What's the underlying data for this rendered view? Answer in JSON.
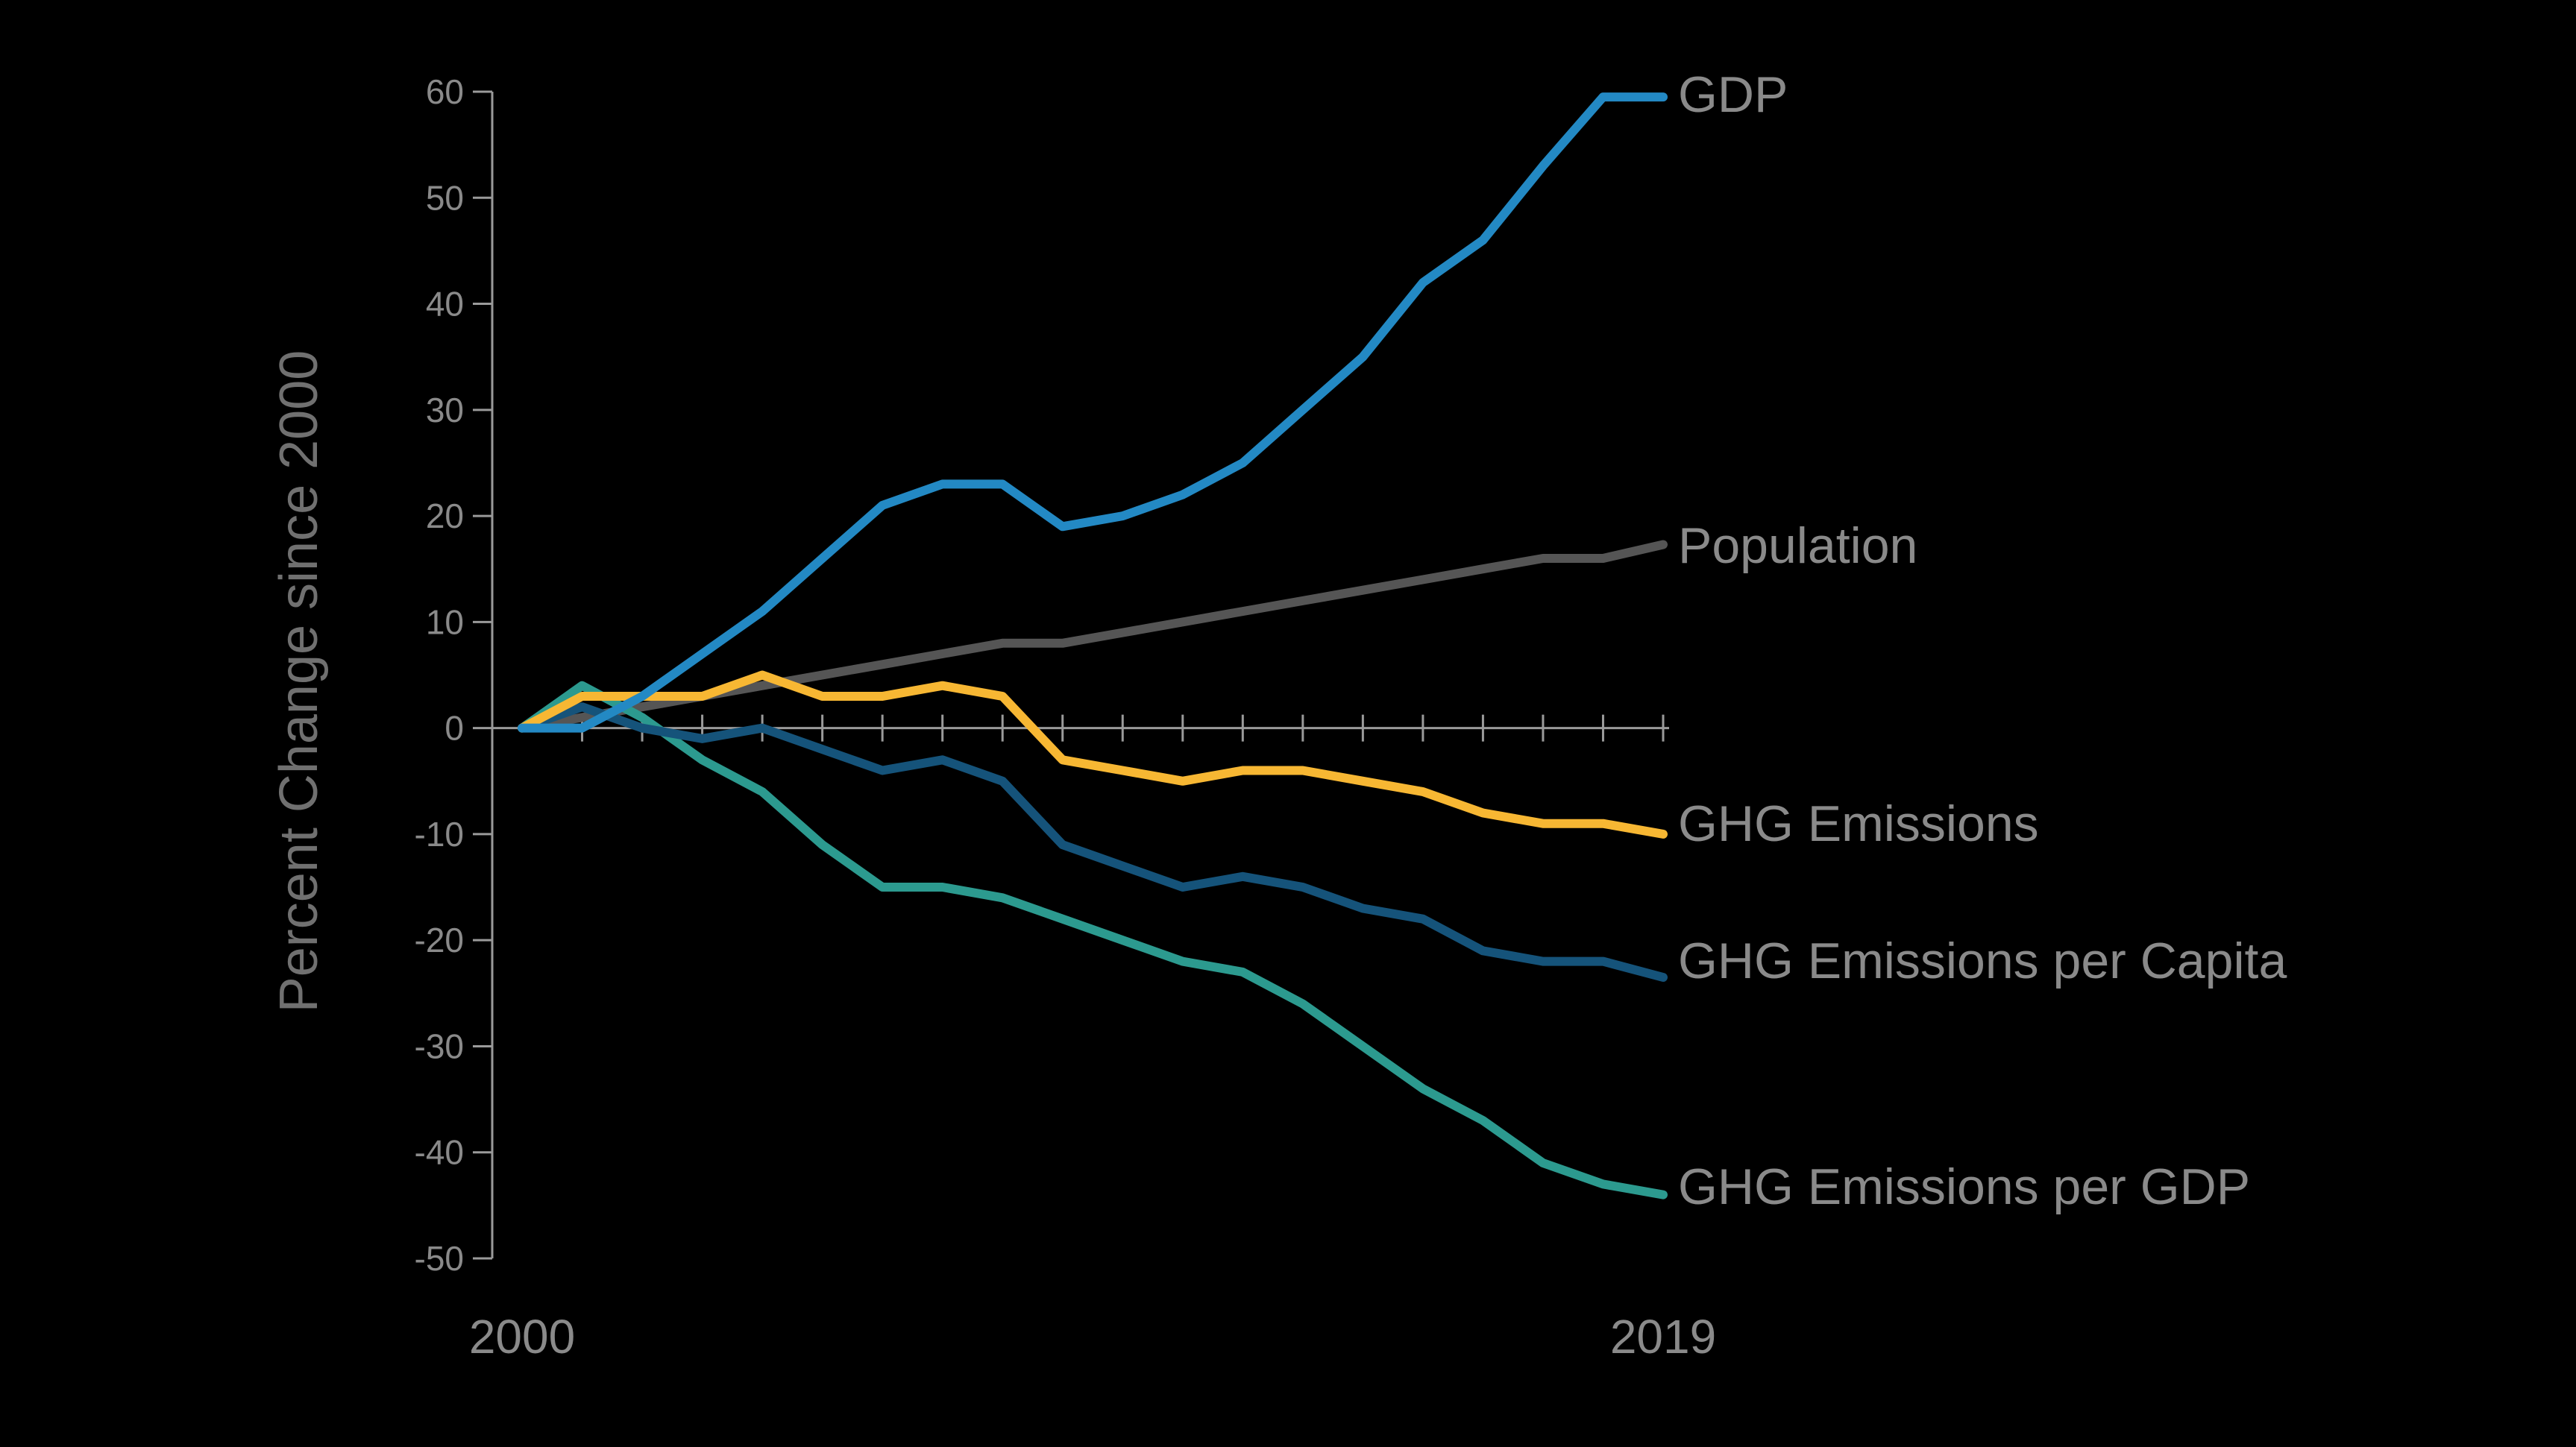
{
  "chart_data": {
    "type": "line",
    "title": "",
    "xlabel": "",
    "ylabel": "Percent Change since 2000",
    "x": [
      2000,
      2001,
      2002,
      2003,
      2004,
      2005,
      2006,
      2007,
      2008,
      2009,
      2010,
      2011,
      2012,
      2013,
      2014,
      2015,
      2016,
      2017,
      2018,
      2019
    ],
    "x_tick_labels": [
      "2000",
      "2019"
    ],
    "ylim": [
      -50,
      60
    ],
    "y_ticks": [
      "60",
      "50",
      "40",
      "30",
      "20",
      "10",
      "0",
      "-10",
      "-20",
      "-30",
      "-40",
      "-50"
    ],
    "grid": false,
    "legend": "direct labels at line ends (right)",
    "series": [
      {
        "name": "GDP",
        "color": "#2389c4",
        "values": [
          0,
          0,
          3,
          7,
          11,
          16,
          21,
          23,
          23,
          19,
          20,
          22,
          25,
          30,
          35,
          42,
          46,
          53,
          59.5,
          59.5
        ]
      },
      {
        "name": "Population",
        "color": "#555555",
        "values": [
          0,
          1,
          2,
          3,
          4,
          5,
          6,
          7,
          8,
          8,
          9,
          10,
          11,
          12,
          13,
          14,
          15,
          16,
          16,
          17.3
        ]
      },
      {
        "name": "GHG Emissions",
        "color": "#f7b733",
        "values": [
          0,
          3,
          3,
          3,
          5,
          3,
          3,
          4,
          3,
          -3,
          -4,
          -5,
          -4,
          -4,
          -5,
          -6,
          -8,
          -9,
          -9,
          -10
        ]
      },
      {
        "name": "GHG Emissions per Capita",
        "color": "#15537a",
        "values": [
          0,
          2,
          0,
          -1,
          0,
          -2,
          -4,
          -3,
          -5,
          -11,
          -13,
          -15,
          -14,
          -15,
          -17,
          -18,
          -21,
          -22,
          -22,
          -23.5
        ]
      },
      {
        "name": "GHG Emissions per GDP",
        "color": "#2c9a8f",
        "values": [
          0,
          4,
          1,
          -3,
          -6,
          -11,
          -15,
          -15,
          -16,
          -18,
          -20,
          -22,
          -23,
          -26,
          -30,
          -34,
          -37,
          -41,
          -43,
          -44
        ]
      }
    ]
  }
}
